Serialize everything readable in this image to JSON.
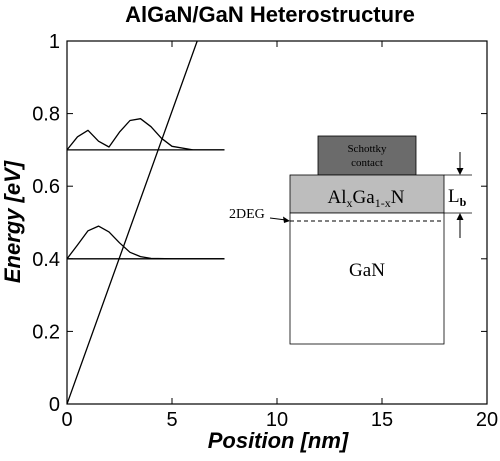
{
  "chart_data": {
    "type": "line",
    "title": "AlGaN/GaN Heterostructure",
    "xlabel": "Position [nm]",
    "ylabel": "Energy [eV]",
    "xlim": [
      0,
      20
    ],
    "ylim": [
      0,
      1
    ],
    "x_ticks": [
      0,
      5,
      10,
      15,
      20
    ],
    "y_ticks": [
      0,
      0.2,
      0.4,
      0.6,
      0.8,
      1
    ],
    "y_tick_labels": [
      "0",
      "0.2",
      "0.4",
      "0.6",
      "0.8",
      "1"
    ],
    "grid": false,
    "series": [
      {
        "x": [
          0,
          6.2
        ],
        "y": [
          0,
          1.0
        ]
      },
      {
        "x": [
          0,
          7.5
        ],
        "y": [
          0.4,
          0.4
        ]
      },
      {
        "x": [
          0,
          7.5
        ],
        "y": [
          0.7,
          0.7
        ]
      },
      {
        "x": [
          0,
          0.5,
          1.0,
          1.5,
          2.0,
          2.5,
          3.0,
          3.5,
          4.0,
          5.0,
          7.5
        ],
        "y": [
          0.4,
          0.438,
          0.477,
          0.49,
          0.474,
          0.444,
          0.418,
          0.406,
          0.401,
          0.4,
          0.4
        ]
      },
      {
        "x": [
          0,
          0.5,
          1.0,
          1.5,
          2.0,
          2.5,
          3.0,
          3.5,
          4.0,
          4.5,
          5.0,
          6.0,
          7.5
        ],
        "y": [
          0.7,
          0.736,
          0.754,
          0.724,
          0.708,
          0.749,
          0.781,
          0.786,
          0.764,
          0.732,
          0.71,
          0.7,
          0.7
        ]
      }
    ],
    "inset": {
      "contact_line1": "Schottky",
      "contact_line2": "contact",
      "barrier_main": "Al",
      "barrier_sub1": "x",
      "barrier_mid": "Ga",
      "barrier_sub2": "1-x",
      "barrier_end": "N",
      "substrate": "GaN",
      "channel": "2DEG",
      "thickness_main": "L",
      "thickness_sub": "b",
      "contact_color": "#6b6b6b",
      "barrier_color": "#bdbdbd"
    }
  }
}
